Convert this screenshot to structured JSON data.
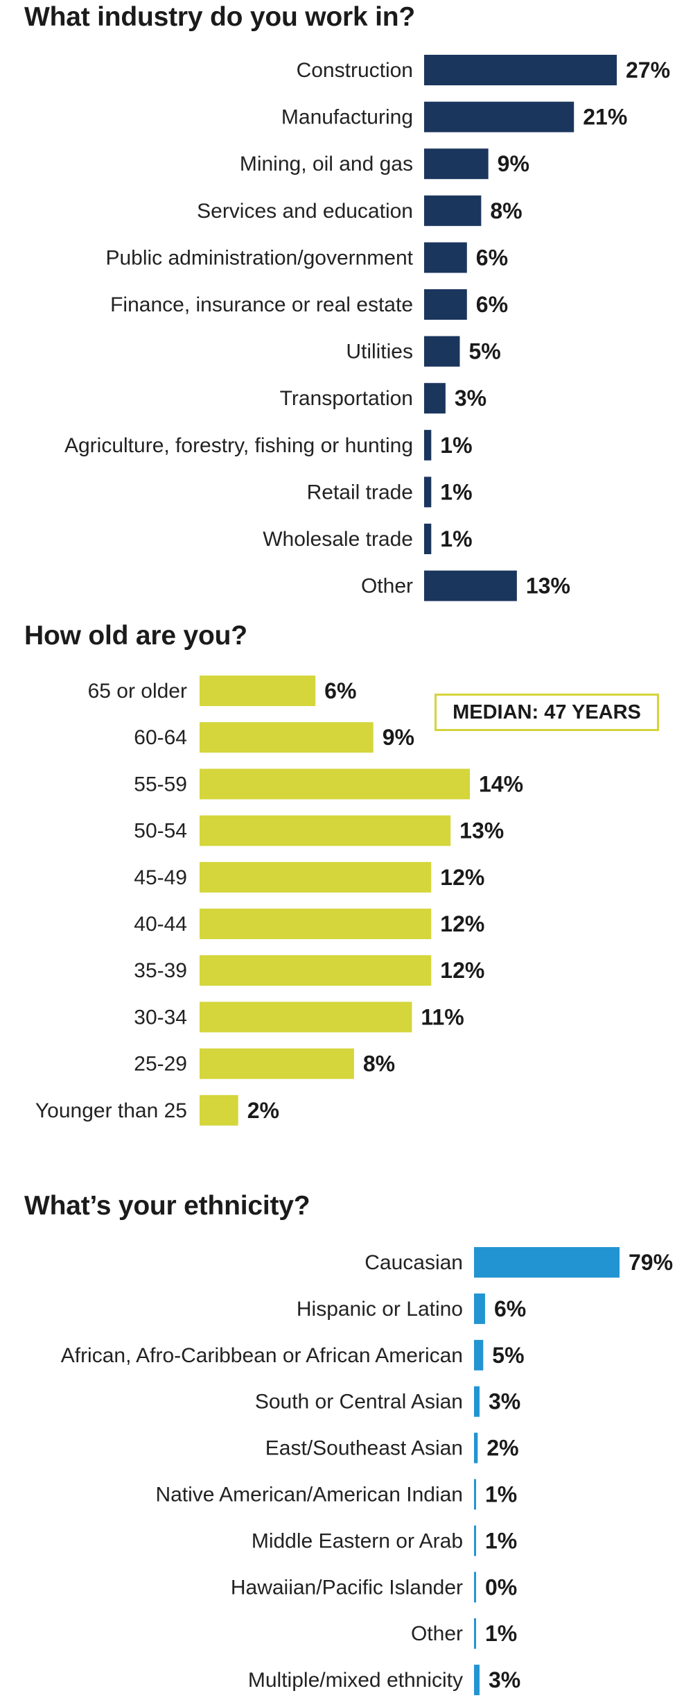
{
  "colors": {
    "industry": "#1b365d",
    "age": "#d4d63b",
    "ethnicity": "#2394d2"
  },
  "chart_data": [
    {
      "type": "bar",
      "orientation": "horizontal",
      "title": "What industry do you work in?",
      "categories": [
        "Construction",
        "Manufacturing",
        "Mining, oil and gas",
        "Services and education",
        "Public administration/government",
        "Finance, insurance or real estate",
        "Utilities",
        "Transportation",
        "Agriculture, forestry, fishing or hunting",
        "Retail trade",
        "Wholesale trade",
        "Other"
      ],
      "values": [
        27,
        21,
        9,
        8,
        6,
        6,
        5,
        3,
        1,
        1,
        1,
        13
      ],
      "value_labels": [
        "27%",
        "21%",
        "9%",
        "8%",
        "6%",
        "6%",
        "5%",
        "3%",
        "1%",
        "1%",
        "1%",
        "13%"
      ],
      "xlim": [
        0,
        27
      ]
    },
    {
      "type": "bar",
      "orientation": "horizontal",
      "title": "How old are you?",
      "categories": [
        "65 or older",
        "60-64",
        "55-59",
        "50-54",
        "45-49",
        "40-44",
        "35-39",
        "30-34",
        "25-29",
        "Younger than 25"
      ],
      "values": [
        6,
        9,
        14,
        13,
        12,
        12,
        12,
        11,
        8,
        2
      ],
      "value_labels": [
        "6%",
        "9%",
        "14%",
        "13%",
        "12%",
        "12%",
        "12%",
        "11%",
        "8%",
        "2%"
      ],
      "xlim": [
        0,
        14
      ],
      "annotation": "MEDIAN: 47 YEARS"
    },
    {
      "type": "bar",
      "orientation": "horizontal",
      "title": "What’s your ethnicity?",
      "categories": [
        "Caucasian",
        "Hispanic or Latino",
        "African, Afro-Caribbean or African American",
        "South or Central Asian",
        "East/Southeast Asian",
        "Native American/American Indian",
        "Middle Eastern or Arab",
        "Hawaiian/Pacific Islander",
        "Other",
        "Multiple/mixed ethnicity"
      ],
      "values": [
        79,
        6,
        5,
        3,
        2,
        1,
        1,
        0,
        1,
        3
      ],
      "value_labels": [
        "79%",
        "6%",
        "5%",
        "3%",
        "2%",
        "1%",
        "1%",
        "0%",
        "1%",
        "3%"
      ],
      "xlim": [
        0,
        79
      ]
    }
  ]
}
